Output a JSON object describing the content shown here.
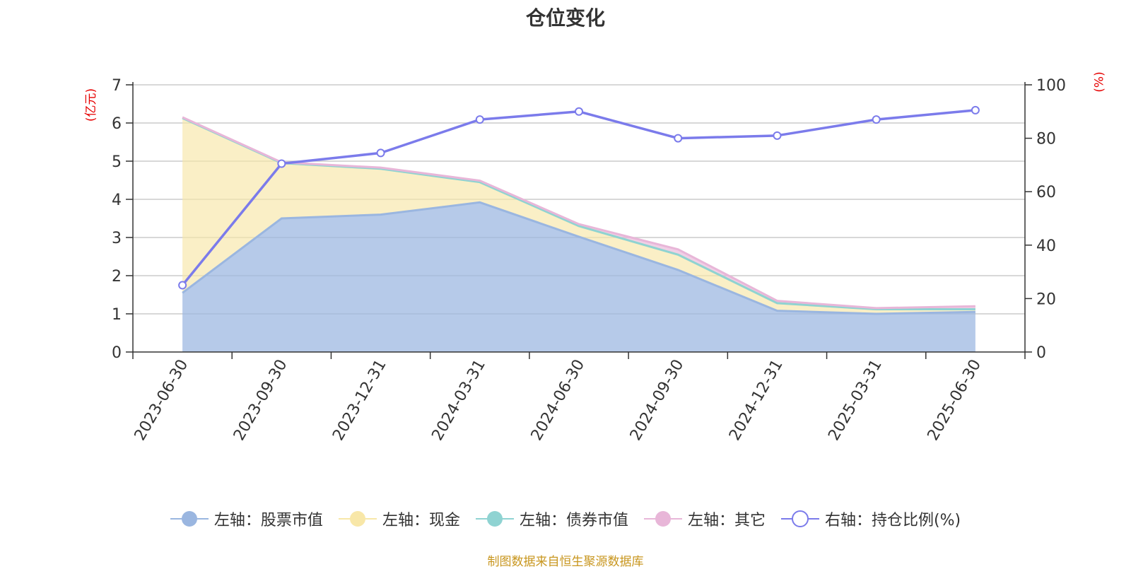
{
  "title": "仓位变化",
  "footer": "制图数据来自恒生聚源数据库",
  "colors": {
    "stock": "#9ab6e0",
    "cash": "#f8e7a8",
    "bond": "#8fd3d2",
    "other": "#e8b6d8",
    "ratio": "#7b7beb",
    "unit_text": "#e60000",
    "footer_text": "#c8961e"
  },
  "chart_data": {
    "type": "area",
    "title": "仓位变化",
    "left_axis_unit": "(亿元)",
    "right_axis_unit": "(%)",
    "categories": [
      "2023-06-30",
      "2023-09-30",
      "2023-12-31",
      "2024-03-31",
      "2024-06-30",
      "2024-09-30",
      "2024-12-31",
      "2025-03-31",
      "2025-06-30"
    ],
    "left_ylim": [
      0,
      7
    ],
    "left_ticks": [
      "0",
      "1",
      "2",
      "3",
      "4",
      "5",
      "6",
      "7"
    ],
    "right_ylim": [
      0,
      100
    ],
    "right_ticks": [
      "0",
      "20",
      "40",
      "60",
      "80",
      "100"
    ],
    "grid": true,
    "legend_position": "bottom-center",
    "series": [
      {
        "name": "左轴：股票市值",
        "axis": "left",
        "kind": "stacked-area",
        "color": "#9ab6e0",
        "values": [
          1.55,
          3.5,
          3.6,
          3.92,
          3.02,
          2.15,
          1.08,
          1.0,
          1.05
        ]
      },
      {
        "name": "左轴：现金",
        "axis": "left",
        "kind": "stacked-area",
        "color": "#f8e7a8",
        "values": [
          4.58,
          1.45,
          1.2,
          0.53,
          0.28,
          0.4,
          0.2,
          0.12,
          0.07
        ]
      },
      {
        "name": "左轴：债券市值",
        "axis": "left",
        "kind": "stacked-area",
        "color": "#8fd3d2",
        "values": [
          0,
          0,
          0,
          0,
          0,
          0,
          0,
          0,
          0
        ]
      },
      {
        "name": "左轴：其它",
        "axis": "left",
        "kind": "stacked-area",
        "color": "#e8b6d8",
        "values": [
          0.02,
          0.02,
          0.03,
          0.04,
          0.05,
          0.14,
          0.06,
          0.03,
          0.08
        ]
      },
      {
        "name": "右轴：持仓比例(%)",
        "axis": "right",
        "kind": "line",
        "color": "#7b7beb",
        "values": [
          25,
          70.5,
          74.5,
          87,
          90,
          80,
          81,
          87,
          90.5
        ]
      }
    ]
  },
  "legend": [
    {
      "label": "左轴：股票市值",
      "icon": "filled-circle",
      "color": "#9ab6e0"
    },
    {
      "label": "左轴：现金",
      "icon": "filled-circle",
      "color": "#f8e7a8"
    },
    {
      "label": "左轴：债券市值",
      "icon": "filled-circle",
      "color": "#8fd3d2"
    },
    {
      "label": "左轴：其它",
      "icon": "filled-circle",
      "color": "#e8b6d8"
    },
    {
      "label": "右轴：持仓比例(%)",
      "icon": "hollow-circle",
      "color": "#7b7beb"
    }
  ]
}
